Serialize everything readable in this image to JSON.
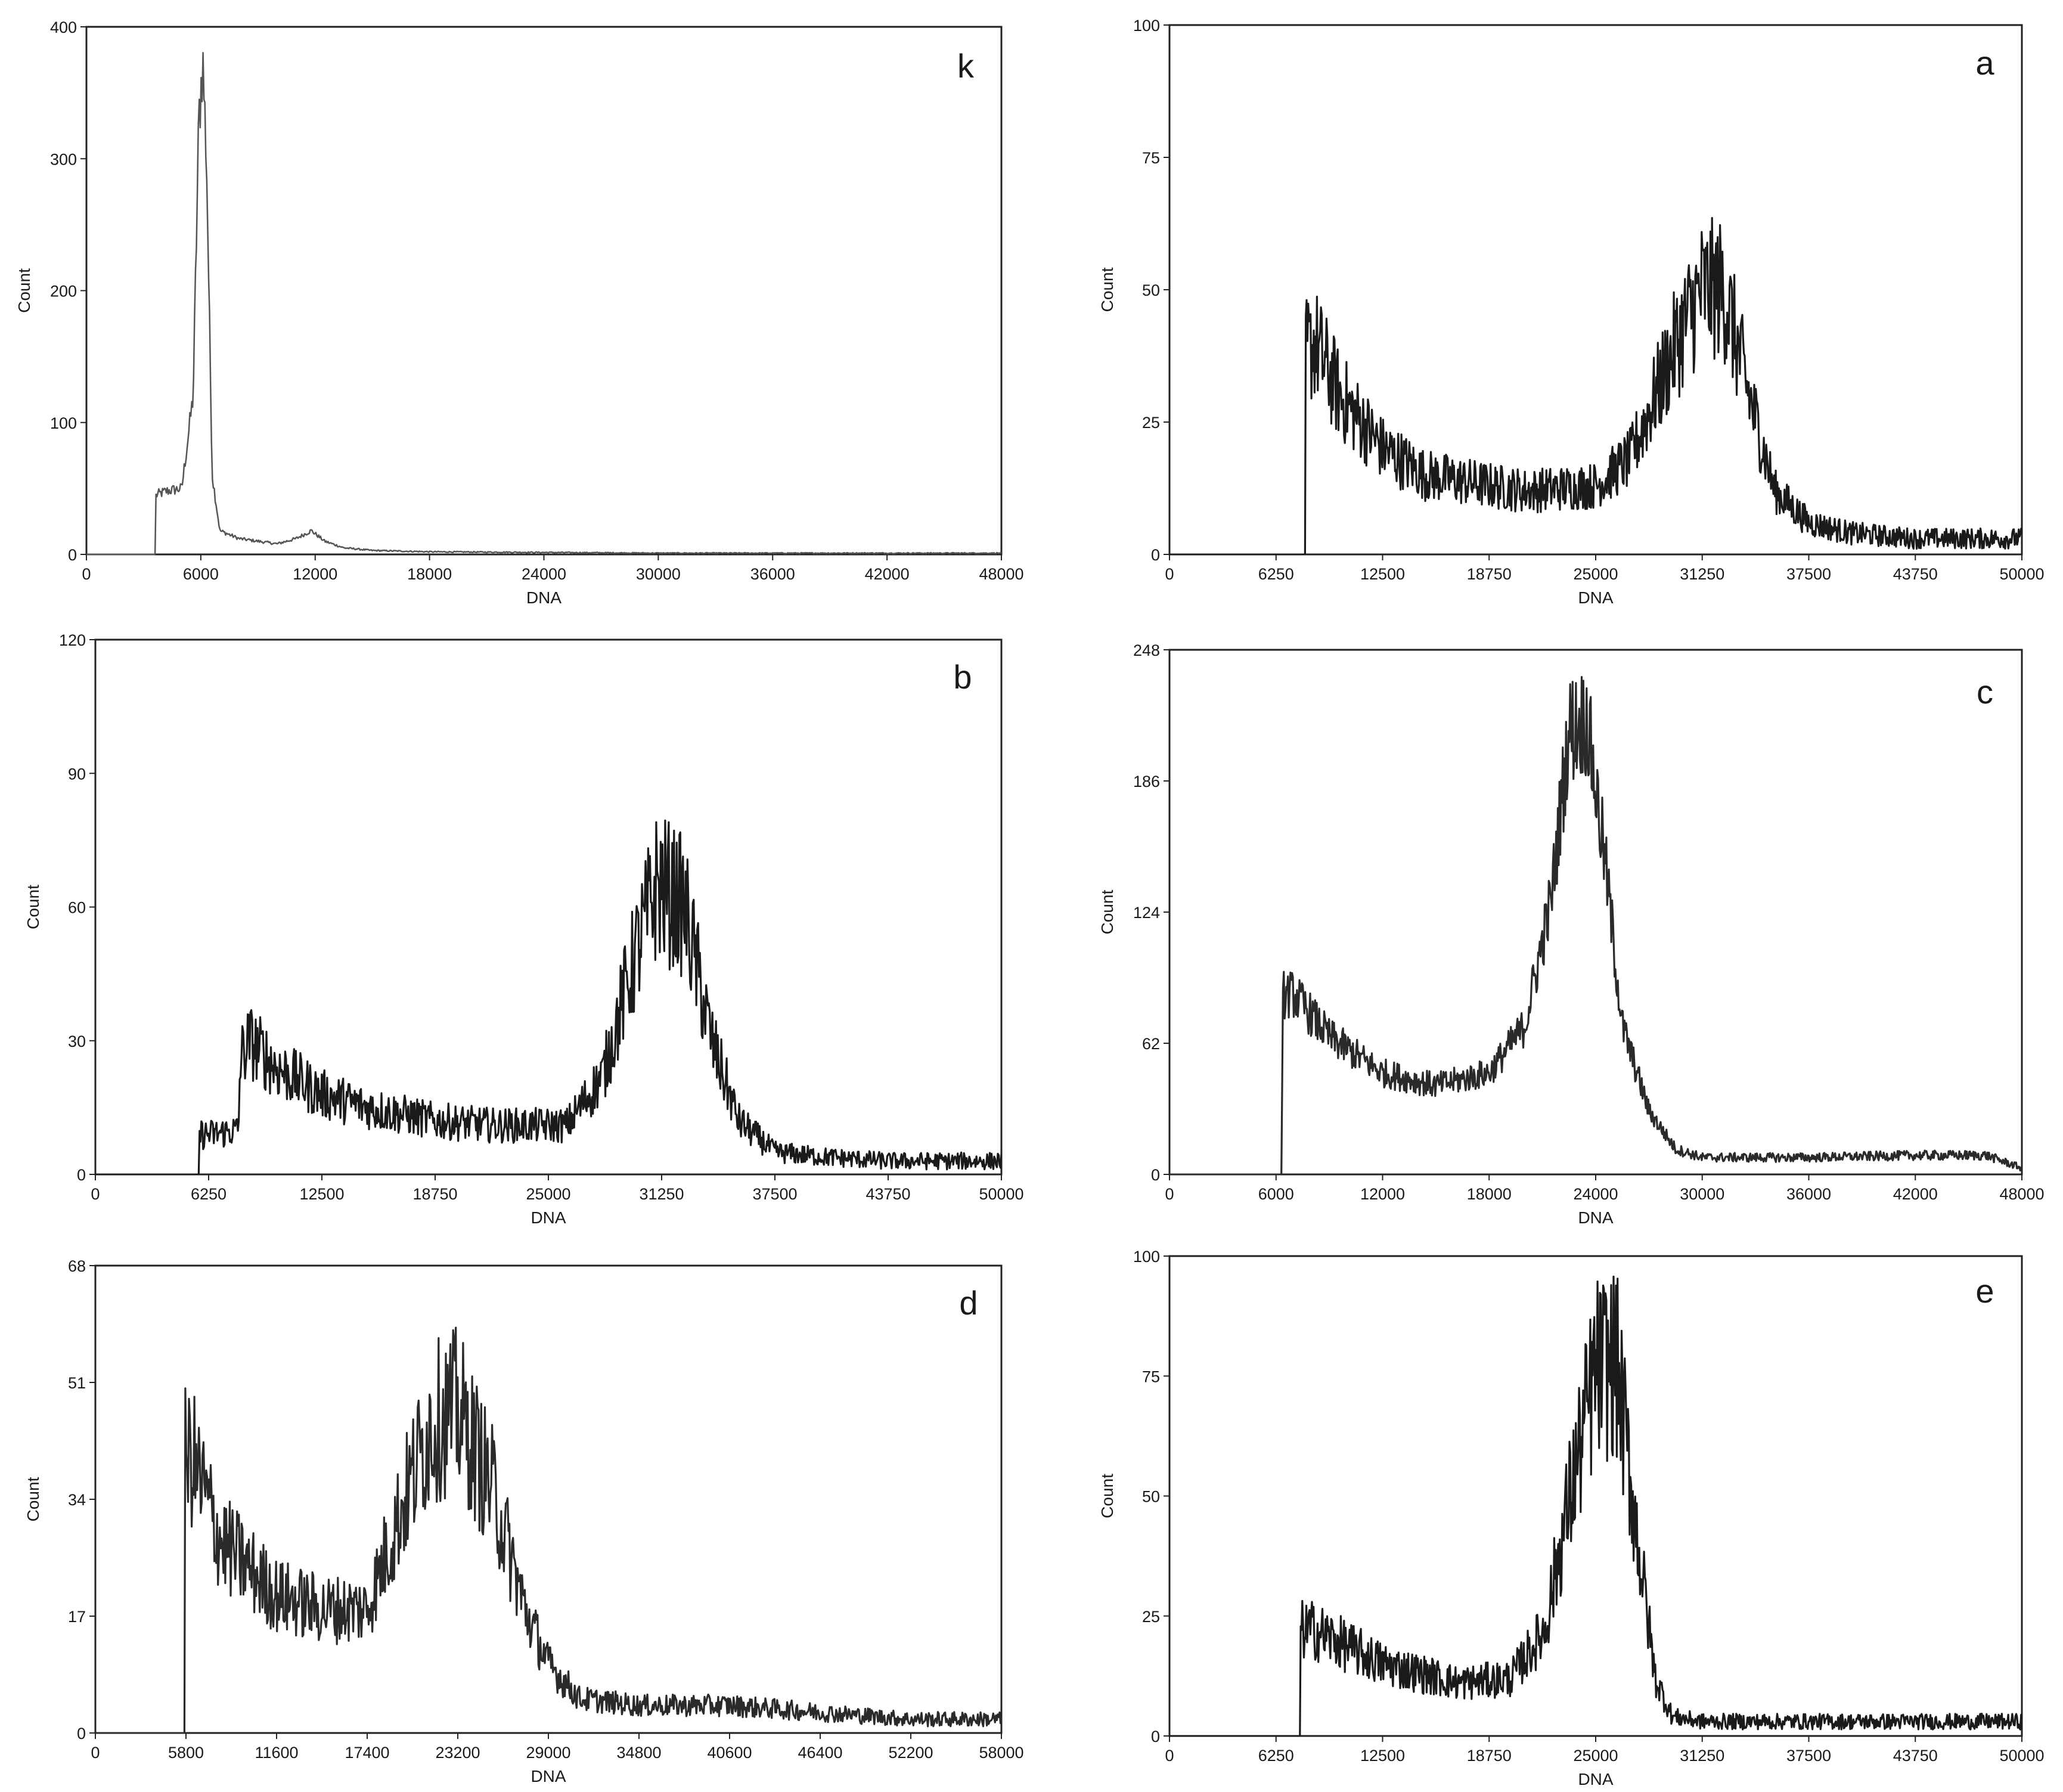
{
  "chart_data": [
    {
      "panel": "k",
      "type": "line",
      "xlabel": "DNA",
      "ylabel": "Count",
      "xlim": [
        0,
        48000
      ],
      "ylim": [
        0,
        400
      ],
      "xticks": [
        0,
        6000,
        12000,
        18000,
        24000,
        30000,
        36000,
        42000,
        48000
      ],
      "yticks": [
        0,
        100,
        200,
        300,
        400
      ],
      "series": [
        {
          "color": "#555555",
          "noise": 0.08,
          "floor": 0.5,
          "x": [
            3600,
            3650,
            4200,
            5000,
            5600,
            5900,
            6100,
            6300,
            6600,
            7000,
            8000,
            10000,
            11000,
            11800,
            12500,
            13500,
            15000,
            18000,
            24000,
            30000,
            36000,
            42000,
            48000
          ],
          "values": [
            0,
            45,
            48,
            50,
            120,
            330,
            375,
            300,
            60,
            18,
            12,
            8,
            12,
            18,
            10,
            5,
            3,
            2,
            1.5,
            1,
            1,
            1,
            1
          ]
        }
      ]
    },
    {
      "panel": "a",
      "type": "line",
      "xlabel": "DNA",
      "ylabel": "Count",
      "xlim": [
        0,
        50000
      ],
      "ylim": [
        0,
        100
      ],
      "xticks": [
        0,
        6250,
        12500,
        18750,
        25000,
        31250,
        37500,
        43750,
        50000
      ],
      "yticks": [
        0,
        25,
        50,
        75,
        100
      ],
      "series": [
        {
          "color": "#1a1a1a",
          "noise": 0.25,
          "floor": 2,
          "x": [
            7950,
            8000,
            8500,
            10000,
            12500,
            15000,
            18750,
            21000,
            25000,
            27000,
            28500,
            30000,
            31250,
            32500,
            34000,
            35500,
            37500,
            40000,
            43750,
            50000
          ],
          "values": [
            0,
            38,
            40,
            30,
            20,
            15,
            13,
            12,
            13,
            18,
            30,
            42,
            50,
            50,
            30,
            12,
            6,
            4,
            3,
            3
          ]
        }
      ]
    },
    {
      "panel": "b",
      "type": "line",
      "xlabel": "DNA",
      "ylabel": "Count",
      "xlim": [
        0,
        50000
      ],
      "ylim": [
        0,
        120
      ],
      "xticks": [
        0,
        6250,
        12500,
        18750,
        25000,
        31250,
        37500,
        43750,
        50000
      ],
      "yticks": [
        0,
        30,
        60,
        90,
        120
      ],
      "series": [
        {
          "color": "#1a1a1a",
          "noise": 0.25,
          "floor": 2,
          "x": [
            5700,
            5750,
            6500,
            7900,
            8000,
            8500,
            10000,
            12500,
            15000,
            18750,
            22000,
            26000,
            28000,
            29500,
            31000,
            32500,
            34000,
            35500,
            37500,
            40000,
            43750,
            50000
          ],
          "values": [
            0,
            9,
            9,
            10,
            26,
            30,
            24,
            18,
            15,
            12,
            11,
            11,
            22,
            45,
            65,
            60,
            30,
            12,
            5,
            4,
            3,
            3
          ]
        }
      ]
    },
    {
      "panel": "c",
      "type": "line",
      "xlabel": "DNA",
      "ylabel": "Count",
      "xlim": [
        0,
        48000
      ],
      "ylim": [
        0,
        248
      ],
      "xticks": [
        0,
        6000,
        12000,
        18000,
        24000,
        30000,
        36000,
        42000,
        48000
      ],
      "yticks": [
        0,
        62,
        124,
        186,
        248
      ],
      "series": [
        {
          "color": "#2a2a2a",
          "noise": 0.12,
          "floor": 2,
          "x": [
            6300,
            6400,
            7000,
            9000,
            12000,
            15000,
            18000,
            20000,
            21500,
            22500,
            23500,
            24500,
            25500,
            27000,
            28500,
            30000,
            36000,
            42000,
            46000,
            48000
          ],
          "values": [
            0,
            85,
            85,
            65,
            48,
            42,
            48,
            70,
            130,
            210,
            215,
            150,
            70,
            30,
            12,
            8,
            8,
            9,
            9,
            3
          ]
        }
      ]
    },
    {
      "panel": "d",
      "type": "line",
      "xlabel": "DNA",
      "ylabel": "Count",
      "xlim": [
        0,
        58000
      ],
      "ylim": [
        0,
        68
      ],
      "xticks": [
        0,
        5800,
        11600,
        17400,
        23200,
        29000,
        34800,
        40600,
        46400,
        52200,
        58000
      ],
      "yticks": [
        0,
        17,
        34,
        51,
        68
      ],
      "series": [
        {
          "color": "#2a2a2a",
          "noise": 0.25,
          "floor": 1,
          "x": [
            5700,
            5750,
            6200,
            8000,
            11600,
            14500,
            17400,
            19500,
            21500,
            23200,
            25500,
            27500,
            29000,
            31000,
            34800,
            40600,
            46400,
            52200,
            58000
          ],
          "values": [
            0,
            40,
            40,
            28,
            20,
            18,
            18,
            32,
            45,
            47,
            35,
            18,
            10,
            5,
            4,
            4,
            3,
            2,
            2
          ]
        }
      ]
    },
    {
      "panel": "e",
      "type": "line",
      "xlabel": "DNA",
      "ylabel": "Count",
      "xlim": [
        0,
        50000
      ],
      "ylim": [
        0,
        100
      ],
      "xticks": [
        0,
        6250,
        12500,
        18750,
        25000,
        31250,
        37500,
        43750,
        50000
      ],
      "yticks": [
        0,
        25,
        50,
        75,
        100
      ],
      "series": [
        {
          "color": "#1a1a1a",
          "noise": 0.25,
          "floor": 1.5,
          "x": [
            7650,
            7700,
            8500,
            12500,
            17000,
            20000,
            22000,
            23500,
            25000,
            26200,
            27500,
            28500,
            29500,
            31250,
            37500,
            43750,
            50000
          ],
          "values": [
            0,
            22,
            22,
            15,
            11,
            12,
            22,
            50,
            76,
            78,
            40,
            12,
            4,
            3,
            3,
            3,
            3
          ]
        }
      ]
    }
  ]
}
